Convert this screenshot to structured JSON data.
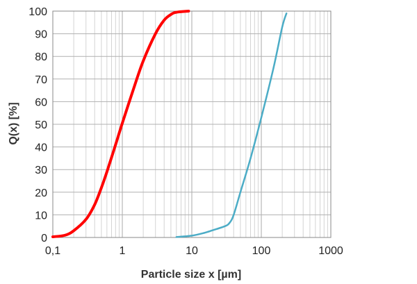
{
  "chart_data": {
    "type": "line",
    "xscale": "log",
    "xlabel": "Particle size x [µm]",
    "ylabel": "Q(x)  [%]",
    "xlim": [
      0.1,
      1000
    ],
    "ylim": [
      0,
      100
    ],
    "xticks": [
      0.1,
      1,
      10,
      100,
      1000
    ],
    "xtick_labels": [
      "0,1",
      "1",
      "10",
      "100",
      "1000"
    ],
    "yticks": [
      0,
      10,
      20,
      30,
      40,
      50,
      60,
      70,
      80,
      90,
      100
    ],
    "yticks_labels": [
      "0",
      "10",
      "20",
      "30",
      "40",
      "50",
      "60",
      "70",
      "80",
      "90",
      "100"
    ],
    "grid": true,
    "series": [
      {
        "color": "#ff0000",
        "points": [
          [
            0.1,
            0.3
          ],
          [
            0.15,
            1.0
          ],
          [
            0.2,
            3.0
          ],
          [
            0.3,
            8.0
          ],
          [
            0.4,
            14.5
          ],
          [
            0.5,
            22.0
          ],
          [
            0.6,
            29.0
          ],
          [
            0.8,
            41.0
          ],
          [
            1.0,
            50.5
          ],
          [
            1.5,
            67.0
          ],
          [
            2.0,
            78.0
          ],
          [
            3.0,
            90.0
          ],
          [
            4.0,
            96.0
          ],
          [
            5.0,
            98.5
          ],
          [
            6.0,
            99.5
          ],
          [
            9.0,
            100.0
          ]
        ]
      },
      {
        "color": "#4bacc6",
        "points": [
          [
            6.0,
            0.2
          ],
          [
            10.0,
            0.8
          ],
          [
            15.0,
            2.0
          ],
          [
            20.0,
            3.2
          ],
          [
            30.0,
            5.0
          ],
          [
            35.0,
            6.5
          ],
          [
            40.0,
            10.0
          ],
          [
            50.0,
            20.0
          ],
          [
            70.0,
            35.0
          ],
          [
            100.0,
            53.0
          ],
          [
            150.0,
            75.0
          ],
          [
            200.0,
            93.0
          ],
          [
            230.0,
            99.0
          ]
        ]
      }
    ]
  }
}
